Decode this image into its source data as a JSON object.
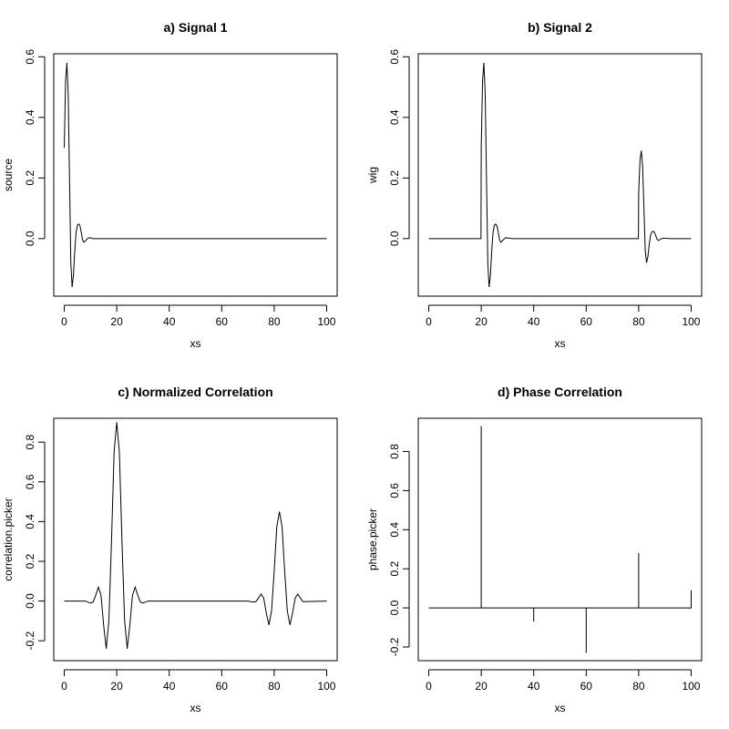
{
  "chart_data": [
    {
      "id": "signal1",
      "type": "line",
      "title": "a) Signal 1",
      "xlabel": "xs",
      "ylabel": "source",
      "xlim": [
        -4,
        104
      ],
      "ylim": [
        -0.19,
        0.61
      ],
      "xticks": [
        0,
        20,
        40,
        60,
        80,
        100
      ],
      "yticks": [
        0.0,
        0.2,
        0.4,
        0.6
      ],
      "ytick_labels": [
        "0.0",
        "0.2",
        "0.4",
        "0.6"
      ],
      "grid": false,
      "series": [
        {
          "x": [
            0,
            0.5,
            1,
            1.5,
            2,
            2.5,
            3,
            3.5,
            4,
            4.5,
            5,
            5.5,
            6,
            6.5,
            7,
            7.5,
            8,
            8.5,
            9,
            9.5,
            10,
            10.5,
            11,
            12,
            13,
            14,
            20,
            40,
            60,
            80,
            100
          ],
          "y": [
            0.3,
            0.52,
            0.58,
            0.48,
            0.2,
            -0.08,
            -0.16,
            -0.12,
            -0.04,
            0.02,
            0.044,
            0.048,
            0.042,
            0.02,
            -0.005,
            -0.012,
            -0.008,
            -0.003,
            0.001,
            0.003,
            0.002,
            0.001,
            0,
            0,
            0,
            0,
            0,
            0,
            0,
            0,
            0
          ]
        }
      ]
    },
    {
      "id": "signal2",
      "type": "line",
      "title": "b) Signal 2",
      "xlabel": "xs",
      "ylabel": "wig",
      "xlim": [
        -4,
        104
      ],
      "ylim": [
        -0.19,
        0.61
      ],
      "xticks": [
        0,
        20,
        40,
        60,
        80,
        100
      ],
      "yticks": [
        0.0,
        0.2,
        0.4,
        0.6
      ],
      "ytick_labels": [
        "0.0",
        "0.2",
        "0.4",
        "0.6"
      ],
      "grid": false,
      "series": [
        {
          "x": [
            0,
            19.9,
            20,
            20.5,
            21,
            21.5,
            22,
            22.5,
            23,
            23.5,
            24,
            24.5,
            25,
            25.5,
            26,
            26.5,
            27,
            27.5,
            28,
            28.5,
            29,
            29.5,
            30,
            31,
            32,
            34,
            50,
            79.9,
            80,
            80.5,
            81,
            81.5,
            82,
            82.5,
            83,
            83.5,
            84,
            84.5,
            85,
            85.5,
            86,
            86.5,
            87,
            87.5,
            88,
            88.5,
            89,
            89.5,
            90,
            91,
            92,
            94,
            100
          ],
          "y": [
            0,
            0,
            0.3,
            0.52,
            0.58,
            0.48,
            0.2,
            -0.08,
            -0.16,
            -0.12,
            -0.04,
            0.02,
            0.044,
            0.048,
            0.042,
            0.02,
            -0.005,
            -0.012,
            -0.008,
            -0.003,
            0.001,
            0.003,
            0.002,
            0.001,
            0,
            0,
            0,
            0,
            0.15,
            0.26,
            0.29,
            0.24,
            0.1,
            -0.04,
            -0.08,
            -0.06,
            -0.02,
            0.01,
            0.022,
            0.024,
            0.021,
            0.01,
            -0.0025,
            -0.006,
            -0.004,
            -0.0015,
            0.0005,
            0.0015,
            0.001,
            0.0005,
            0,
            0,
            0
          ]
        }
      ]
    },
    {
      "id": "ncc",
      "type": "line",
      "title": "c) Normalized Correlation",
      "xlabel": "xs",
      "ylabel": "correlation.picker",
      "xlim": [
        -4,
        104
      ],
      "ylim": [
        -0.3,
        0.92
      ],
      "xticks": [
        0,
        20,
        40,
        60,
        80,
        100
      ],
      "yticks": [
        -0.2,
        0.0,
        0.2,
        0.4,
        0.6,
        0.8
      ],
      "ytick_labels": [
        "-0.2",
        "0.0",
        "0.2",
        "0.4",
        "0.6",
        "0.8"
      ],
      "grid": false,
      "series": [
        {
          "x": [
            0,
            8,
            9,
            10,
            11,
            12,
            13,
            14,
            15,
            16,
            17,
            18,
            19,
            20,
            21,
            22,
            23,
            24,
            25,
            26,
            27,
            28,
            29,
            30,
            31,
            32,
            40,
            70,
            71,
            72,
            73,
            74,
            75,
            76,
            77,
            78,
            79,
            80,
            81,
            82,
            83,
            84,
            85,
            86,
            87,
            88,
            89,
            90,
            91,
            100
          ],
          "y": [
            0,
            0,
            -0.005,
            -0.01,
            -0.005,
            0.03,
            0.07,
            0.03,
            -0.12,
            -0.24,
            -0.1,
            0.3,
            0.75,
            0.9,
            0.75,
            0.3,
            -0.1,
            -0.24,
            -0.12,
            0.03,
            0.07,
            0.03,
            -0.005,
            -0.01,
            -0.005,
            0,
            0,
            0,
            -0.003,
            -0.005,
            -0.003,
            0.015,
            0.035,
            0.015,
            -0.06,
            -0.12,
            -0.05,
            0.15,
            0.375,
            0.45,
            0.375,
            0.15,
            -0.05,
            -0.12,
            -0.06,
            0.015,
            0.035,
            0.015,
            -0.003,
            0
          ]
        }
      ]
    },
    {
      "id": "phase",
      "type": "line",
      "title": "d) Phase Correlation",
      "xlabel": "xs",
      "ylabel": "phase.picker",
      "xlim": [
        -4,
        104
      ],
      "ylim": [
        -0.27,
        0.97
      ],
      "xticks": [
        0,
        20,
        40,
        60,
        80,
        100
      ],
      "yticks": [
        -0.2,
        0.0,
        0.2,
        0.4,
        0.6,
        0.8
      ],
      "ytick_labels": [
        "-0.2",
        "0.0",
        "0.2",
        "0.4",
        "0.6",
        "0.8"
      ],
      "grid": false,
      "series": [
        {
          "x": [
            0,
            20,
            20,
            20,
            40,
            40,
            40,
            60,
            60,
            60,
            80,
            80,
            80,
            100,
            100
          ],
          "y": [
            0,
            0,
            0.93,
            0,
            0,
            -0.07,
            0,
            0,
            -0.23,
            0,
            0,
            0.28,
            0,
            0,
            0.09
          ]
        }
      ]
    }
  ]
}
